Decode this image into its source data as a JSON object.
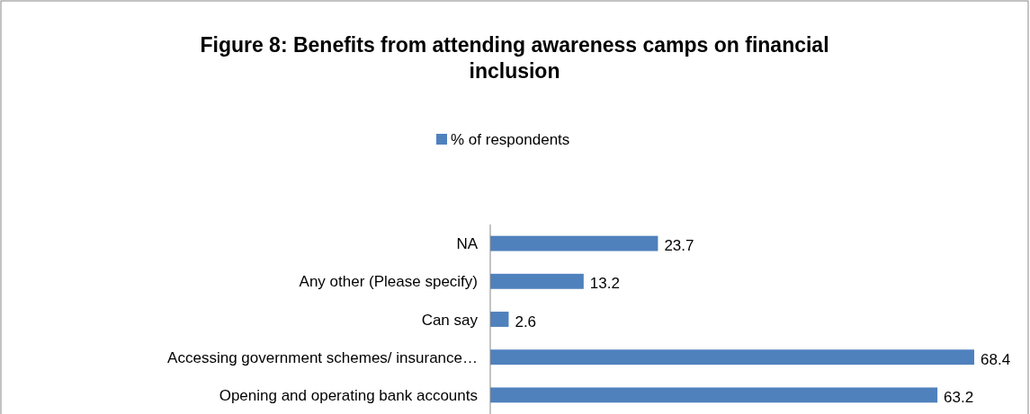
{
  "chart_data": {
    "type": "bar",
    "orientation": "horizontal",
    "title": "Figure 8: Benefits from attending awareness camps on financial inclusion",
    "categories": [
      "NA",
      "Any other (Please specify)",
      "Can say",
      "Accessing government schemes/ insurance…",
      "Opening and operating bank accounts"
    ],
    "series": [
      {
        "name": "% of respondents",
        "color": "#4f81bd",
        "values": [
          23.7,
          13.2,
          2.6,
          68.4,
          63.2
        ]
      }
    ],
    "data_labels": true,
    "legend": "top"
  }
}
